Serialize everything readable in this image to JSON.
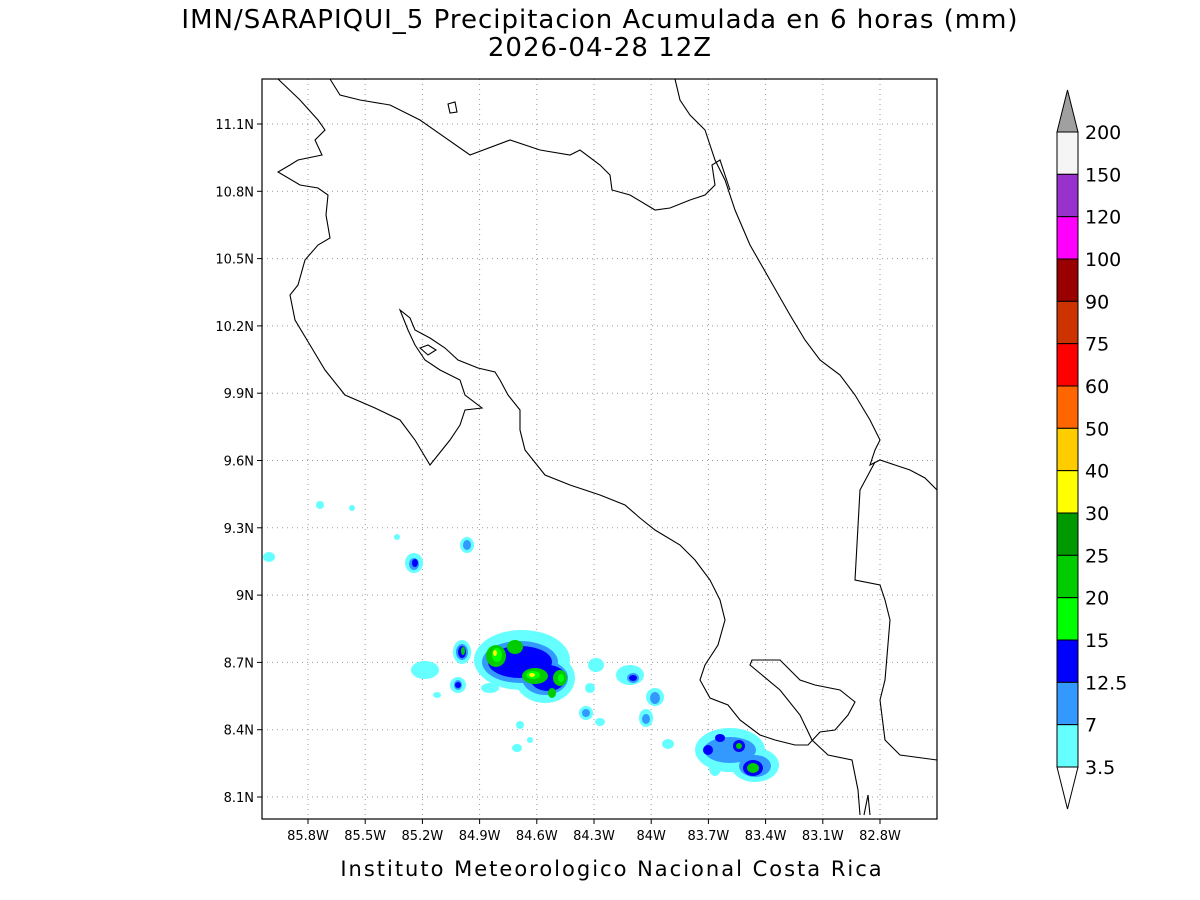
{
  "header": {
    "title": "IMN/SARAPIQUI_5 Precipitacion Acumulada en 6 horas (mm)",
    "subtitle": "2026-04-28 12Z"
  },
  "map": {
    "lon_labels": [
      "85.8W",
      "85.5W",
      "85.2W",
      "84.9W",
      "84.6W",
      "84.3W",
      "84W",
      "83.7W",
      "83.4W",
      "83.1W",
      "82.8W"
    ],
    "lat_labels": [
      "11.1N",
      "10.8N",
      "10.5N",
      "10.2N",
      "9.9N",
      "9.6N",
      "9.3N",
      "9N",
      "8.7N",
      "8.4N",
      "8.1N"
    ]
  },
  "colorbar": {
    "labels": [
      200,
      150,
      120,
      100,
      90,
      75,
      60,
      50,
      40,
      30,
      25,
      20,
      15,
      12.5,
      7,
      3.5
    ],
    "colors": [
      "#f5f5f5",
      "#9932cc",
      "#ff00ff",
      "#990000",
      "#cc3300",
      "#ff0000",
      "#ff6600",
      "#ffcc00",
      "#ffff00",
      "#009900",
      "#00cc00",
      "#00ff00",
      "#0000ff",
      "#3399ff",
      "#66ffff"
    ],
    "top_color": "#a0a0a0",
    "bottom_color": "#ffffff"
  },
  "footer": "Instituto Meteorologico Nacional Costa Rica"
}
